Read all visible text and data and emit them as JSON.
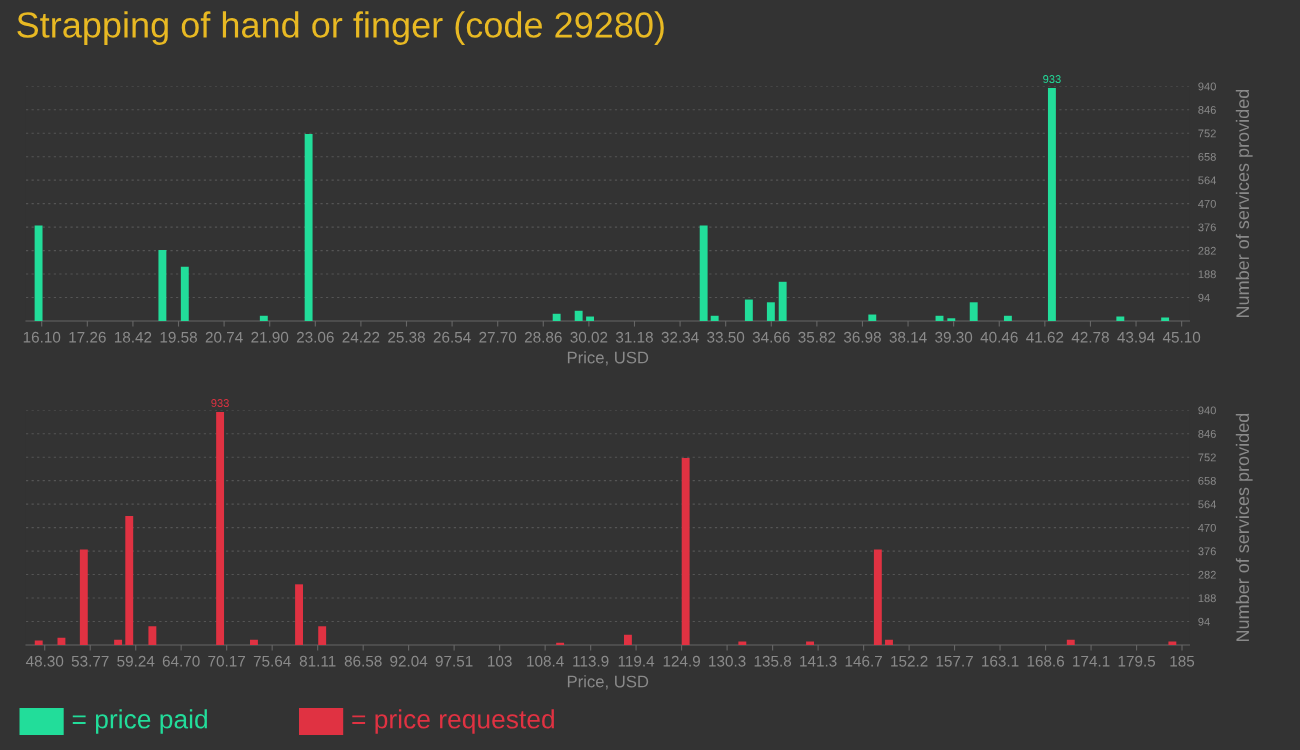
{
  "chart_data": [
    {
      "type": "bar",
      "title": "Strapping of hand or finger (code 29280)",
      "xlabel": "Price, USD",
      "ylabel": "Number of services provided",
      "x": [
        16.02,
        19.17,
        19.74,
        21.75,
        22.89,
        29.2,
        29.76,
        30.05,
        32.94,
        33.22,
        34.09,
        34.65,
        34.95,
        37.23,
        38.94,
        39.24,
        39.81,
        40.68,
        41.8,
        43.54,
        44.68
      ],
      "series": [
        {
          "name": "= price paid",
          "color": "#22dd9a",
          "values": [
            382,
            284,
            217,
            21,
            749,
            29,
            41,
            18,
            382,
            21,
            86,
            75,
            157,
            26,
            21,
            11,
            75,
            21,
            933,
            18,
            14
          ],
          "value_labels": [
            null,
            null,
            null,
            null,
            null,
            null,
            null,
            null,
            null,
            null,
            null,
            null,
            null,
            null,
            null,
            null,
            null,
            null,
            "933",
            null,
            null
          ]
        }
      ],
      "xlim": [
        15.7,
        45.3
      ],
      "xticks": [
        {
          "value": 16.1,
          "label": "16.10"
        },
        {
          "value": 17.26,
          "label": "17.26"
        },
        {
          "value": 18.42,
          "label": "18.42"
        },
        {
          "value": 19.58,
          "label": "19.58"
        },
        {
          "value": 20.74,
          "label": "20.74"
        },
        {
          "value": 21.9,
          "label": "21.90"
        },
        {
          "value": 23.06,
          "label": "23.06"
        },
        {
          "value": 24.22,
          "label": "24.22"
        },
        {
          "value": 25.38,
          "label": "25.38"
        },
        {
          "value": 26.54,
          "label": "26.54"
        },
        {
          "value": 27.7,
          "label": "27.70"
        },
        {
          "value": 28.86,
          "label": "28.86"
        },
        {
          "value": 30.02,
          "label": "30.02"
        },
        {
          "value": 31.18,
          "label": "31.18"
        },
        {
          "value": 32.34,
          "label": "32.34"
        },
        {
          "value": 33.5,
          "label": "33.50"
        },
        {
          "value": 34.66,
          "label": "34.66"
        },
        {
          "value": 35.82,
          "label": "35.82"
        },
        {
          "value": 36.98,
          "label": "36.98"
        },
        {
          "value": 38.14,
          "label": "38.14"
        },
        {
          "value": 39.3,
          "label": "39.30"
        },
        {
          "value": 40.46,
          "label": "40.46"
        },
        {
          "value": 41.62,
          "label": "41.62"
        },
        {
          "value": 42.78,
          "label": "42.78"
        },
        {
          "value": 43.94,
          "label": "43.94"
        },
        {
          "value": 45.1,
          "label": "45.10"
        }
      ],
      "ylim": [
        0,
        940
      ],
      "yticks": [
        94,
        188,
        282,
        376,
        470,
        564,
        658,
        752,
        846,
        940
      ],
      "grid": "y",
      "legend": "bottom left"
    },
    {
      "type": "bar",
      "xlabel": "Price, USD",
      "ylabel": "Number of services provided",
      "x": [
        47.58,
        50.31,
        53.0,
        57.12,
        58.46,
        61.24,
        69.38,
        73.45,
        78.87,
        81.65,
        110.25,
        118.4,
        125.34,
        132.15,
        140.29,
        148.44,
        149.78,
        171.63,
        183.84
      ],
      "series": [
        {
          "name": "= price requested",
          "color": "#e03242",
          "values": [
            18,
            29,
            382,
            21,
            517,
            75,
            933,
            21,
            243,
            75,
            9,
            41,
            749,
            14,
            14,
            382,
            21,
            21,
            14
          ],
          "value_labels": [
            null,
            null,
            null,
            null,
            null,
            null,
            "933",
            null,
            null,
            null,
            null,
            null,
            null,
            null,
            null,
            null,
            null,
            null,
            null
          ]
        }
      ],
      "xlim": [
        46.05,
        185.9
      ],
      "xticks": [
        {
          "value": 48.3,
          "label": "48.30"
        },
        {
          "value": 53.77,
          "label": "53.77"
        },
        {
          "value": 59.24,
          "label": "59.24"
        },
        {
          "value": 64.7,
          "label": "64.70"
        },
        {
          "value": 70.17,
          "label": "70.17"
        },
        {
          "value": 75.64,
          "label": "75.64"
        },
        {
          "value": 81.11,
          "label": "81.11"
        },
        {
          "value": 86.58,
          "label": "86.58"
        },
        {
          "value": 92.04,
          "label": "92.04"
        },
        {
          "value": 97.51,
          "label": "97.51"
        },
        {
          "value": 102.98,
          "label": "103"
        },
        {
          "value": 108.45,
          "label": "108.4"
        },
        {
          "value": 113.92,
          "label": "113.9"
        },
        {
          "value": 119.38,
          "label": "119.4"
        },
        {
          "value": 124.85,
          "label": "124.9"
        },
        {
          "value": 130.32,
          "label": "130.3"
        },
        {
          "value": 135.79,
          "label": "135.8"
        },
        {
          "value": 141.26,
          "label": "141.3"
        },
        {
          "value": 146.73,
          "label": "146.7"
        },
        {
          "value": 152.2,
          "label": "152.2"
        },
        {
          "value": 157.66,
          "label": "157.7"
        },
        {
          "value": 163.13,
          "label": "163.1"
        },
        {
          "value": 168.6,
          "label": "168.6"
        },
        {
          "value": 174.07,
          "label": "174.1"
        },
        {
          "value": 179.54,
          "label": "179.5"
        },
        {
          "value": 185.0,
          "label": "185"
        }
      ],
      "ylim": [
        0,
        940
      ],
      "yticks": [
        94,
        188,
        282,
        376,
        470,
        564,
        658,
        752,
        846,
        940
      ],
      "grid": "y",
      "legend": "bottom left"
    }
  ]
}
